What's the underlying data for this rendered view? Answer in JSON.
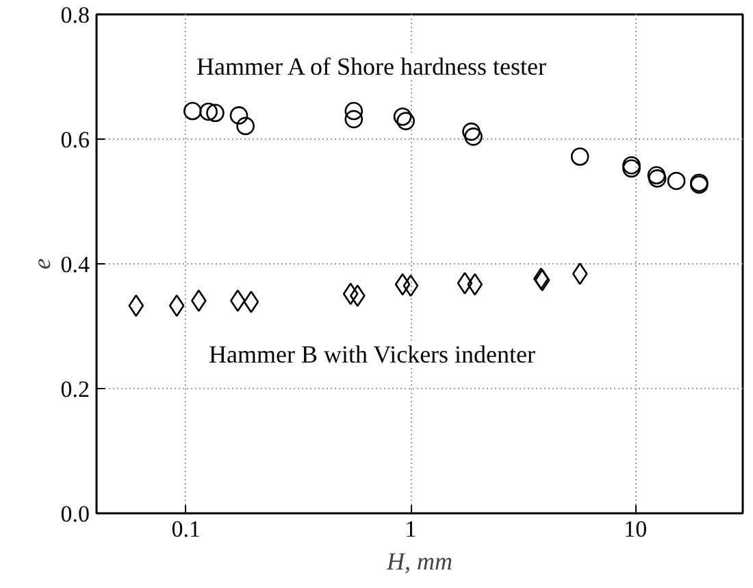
{
  "chart_data": {
    "type": "scatter",
    "xlabel": "H, mm",
    "ylabel": "e",
    "log": "x",
    "grid": true,
    "xlim": [
      0.04,
      30
    ],
    "xticks": [
      0.1,
      1,
      10
    ],
    "ylim": [
      0,
      0.8
    ],
    "yticks": [
      {
        "value": 0,
        "label": "0.0"
      },
      0.2,
      0.4,
      0.6,
      0.8
    ],
    "series": [
      {
        "marker": "circle",
        "color": "#000000",
        "x": [
          0.107,
          0.126,
          0.135,
          0.172,
          0.184,
          0.558,
          0.558,
          0.92,
          0.95,
          1.86,
          1.9,
          5.66,
          9.6,
          9.6,
          12.4,
          12.5,
          15.2,
          19.2,
          19.2
        ],
        "values": [
          0.645,
          0.644,
          0.642,
          0.638,
          0.621,
          0.645,
          0.632,
          0.636,
          0.629,
          0.612,
          0.604,
          0.572,
          0.558,
          0.553,
          0.542,
          0.537,
          0.533,
          0.53,
          0.527
        ]
      },
      {
        "marker": "diamond",
        "color": "#000000",
        "x": [
          0.06,
          0.091,
          0.114,
          0.17,
          0.195,
          0.54,
          0.58,
          0.92,
          1.0,
          1.74,
          1.93,
          3.8,
          3.85,
          5.66
        ],
        "values": [
          0.333,
          0.333,
          0.341,
          0.341,
          0.339,
          0.352,
          0.349,
          0.367,
          0.365,
          0.369,
          0.367,
          0.376,
          0.374,
          0.384
        ]
      }
    ],
    "annotations": [
      "Hammer A of Shore hardness tester",
      "Hammer B with Vickers indenter"
    ]
  }
}
